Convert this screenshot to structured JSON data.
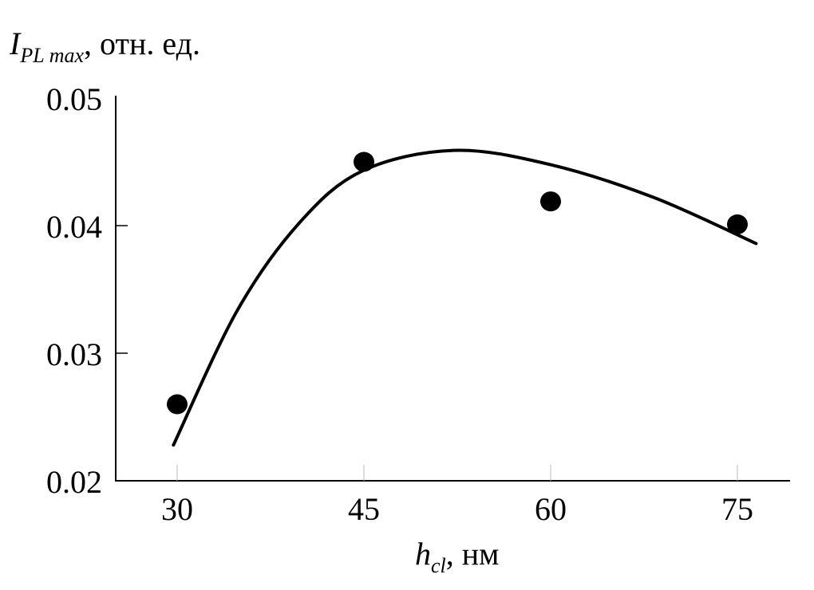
{
  "chart_data": {
    "type": "scatter",
    "ylabel": {
      "main": "I",
      "sub": "PL max",
      "suffix": ", отн. ед."
    },
    "xlabel": {
      "main": "h",
      "sub": "cl",
      "suffix": ", нм"
    },
    "xlim": [
      25,
      79
    ],
    "ylim": [
      0.02,
      0.05
    ],
    "xticks": [
      "30",
      "45",
      "60",
      "75"
    ],
    "xtick_values": [
      30,
      45,
      60,
      75
    ],
    "yticks": [
      "0.02",
      "0.03",
      "0.04",
      "0.05"
    ],
    "ytick_values": [
      0.02,
      0.03,
      0.04,
      0.05
    ],
    "grid": false,
    "points": {
      "x": [
        30,
        45,
        60,
        75
      ],
      "y": [
        0.026,
        0.045,
        0.0419,
        0.0401
      ]
    },
    "fit_curve": {
      "x": [
        29.7,
        34.8,
        39.8,
        44.9,
        52.2,
        59.9,
        68.3,
        76.5
      ],
      "y": [
        0.0228,
        0.0333,
        0.0402,
        0.0443,
        0.0459,
        0.0448,
        0.0422,
        0.0386
      ]
    },
    "colors": {
      "marks": "#000000",
      "xtick": "#bbbbbb"
    }
  }
}
